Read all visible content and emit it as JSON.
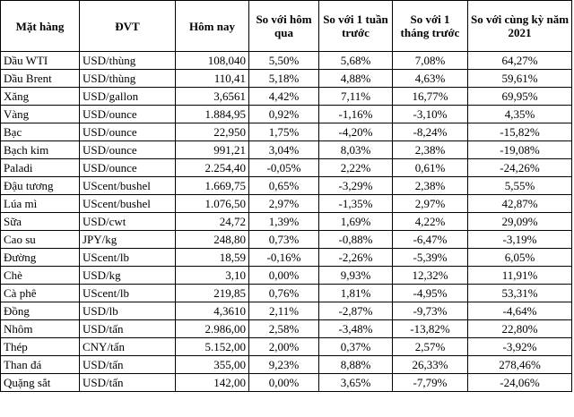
{
  "headers": {
    "item": "Mặt hàng",
    "unit": "ĐVT",
    "today": "Hôm nay",
    "vs_yesterday": "So với hôm qua",
    "vs_week": "So với 1 tuần trước",
    "vs_month": "So với 1 tháng trước",
    "vs_year": "So với cùng kỳ năm 2021"
  },
  "rows": [
    {
      "item": "Dầu WTI",
      "unit": "USD/thùng",
      "today": "108,040",
      "d1": "5,50%",
      "w1": "5,68%",
      "m1": "7,08%",
      "y1": "64,27%"
    },
    {
      "item": "Dầu Brent",
      "unit": "USD/thùng",
      "today": "110,41",
      "d1": "5,18%",
      "w1": "4,88%",
      "m1": "4,63%",
      "y1": "59,61%"
    },
    {
      "item": "Xăng",
      "unit": "USD/gallon",
      "today": "3,6561",
      "d1": "4,42%",
      "w1": "7,11%",
      "m1": "16,77%",
      "y1": "69,95%"
    },
    {
      "item": "Vàng",
      "unit": "USD/ounce",
      "today": "1.884,95",
      "d1": "0,92%",
      "w1": "-1,16%",
      "m1": "-3,10%",
      "y1": "4,35%"
    },
    {
      "item": "Bạc",
      "unit": "USD/ounce",
      "today": "22,950",
      "d1": "1,75%",
      "w1": "-4,20%",
      "m1": "-8,24%",
      "y1": "-15,82%"
    },
    {
      "item": "Bạch kim",
      "unit": "USD/ounce",
      "today": "991,21",
      "d1": "3,04%",
      "w1": "8,03%",
      "m1": "2,38%",
      "y1": "-19,08%"
    },
    {
      "item": "Paladi",
      "unit": "USD/ounce",
      "today": "2.254,40",
      "d1": "-0,05%",
      "w1": "2,22%",
      "m1": "0,61%",
      "y1": "-24,26%"
    },
    {
      "item": "Đậu tương",
      "unit": "UScent/bushel",
      "today": "1.669,75",
      "d1": "0,65%",
      "w1": "-3,29%",
      "m1": "2,38%",
      "y1": "5,55%"
    },
    {
      "item": "Lúa mì",
      "unit": "UScent/bushel",
      "today": "1.076,50",
      "d1": "2,97%",
      "w1": "-1,35%",
      "m1": "2,97%",
      "y1": "42,87%"
    },
    {
      "item": "Sữa",
      "unit": "USD/cwt",
      "today": "24,72",
      "d1": "1,39%",
      "w1": "1,69%",
      "m1": "4,22%",
      "y1": "29,09%"
    },
    {
      "item": "Cao su",
      "unit": "JPY/kg",
      "today": "248,80",
      "d1": "0,73%",
      "w1": "-0,88%",
      "m1": "-6,47%",
      "y1": "-3,19%"
    },
    {
      "item": "Đường",
      "unit": "UScent/lb",
      "today": "18,59",
      "d1": "-0,16%",
      "w1": "-2,26%",
      "m1": "-5,39%",
      "y1": "6,05%"
    },
    {
      "item": "Chè",
      "unit": "USD/kg",
      "today": "3,10",
      "d1": "0,00%",
      "w1": "9,93%",
      "m1": "12,32%",
      "y1": "11,91%"
    },
    {
      "item": "Cà phê",
      "unit": "UScent/lb",
      "today": "219,85",
      "d1": "0,76%",
      "w1": "1,81%",
      "m1": "-4,95%",
      "y1": "53,31%"
    },
    {
      "item": "Đồng",
      "unit": "USD/lb",
      "today": "4,3610",
      "d1": "2,11%",
      "w1": "-2,87%",
      "m1": "-9,73%",
      "y1": "-4,64%"
    },
    {
      "item": "Nhôm",
      "unit": "USD/tấn",
      "today": "2.986,00",
      "d1": "2,58%",
      "w1": "-3,48%",
      "m1": "-13,82%",
      "y1": "22,80%"
    },
    {
      "item": "Thép",
      "unit": "CNY/tấn",
      "today": "5.152,00",
      "d1": "2,00%",
      "w1": "0,37%",
      "m1": "2,57%",
      "y1": "-3,92%"
    },
    {
      "item": "Than đá",
      "unit": "USD/tấn",
      "today": "355,00",
      "d1": "9,23%",
      "w1": "8,88%",
      "m1": "26,33%",
      "y1": "278,46%"
    },
    {
      "item": "Quặng sắt",
      "unit": "USD/tấn",
      "today": "142,00",
      "d1": "0,00%",
      "w1": "3,65%",
      "m1": "-7,79%",
      "y1": "-24,06%"
    }
  ]
}
